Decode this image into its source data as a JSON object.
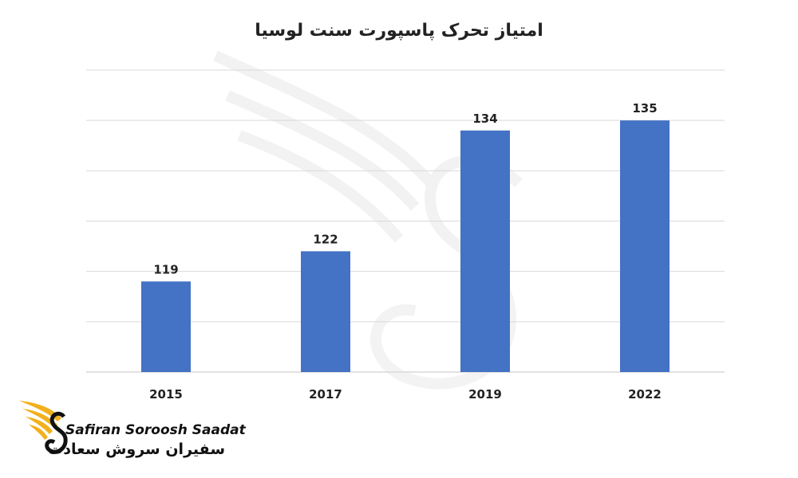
{
  "chart_data": {
    "type": "bar",
    "title": "امتیاز تحرک پاسپورت سنت لوسیا",
    "categories": [
      "2015",
      "2017",
      "2019",
      "2022"
    ],
    "values": [
      119,
      122,
      134,
      135
    ],
    "xlabel": "",
    "ylabel": "",
    "ylim": [
      110,
      140
    ],
    "grid": true,
    "legend": "none",
    "bar_color": "#4472C4"
  },
  "branding": {
    "name_en": "Safiran Soroosh Saadat",
    "name_fa": "سفیران سروش سعادت",
    "accent": "#F2B01E"
  }
}
